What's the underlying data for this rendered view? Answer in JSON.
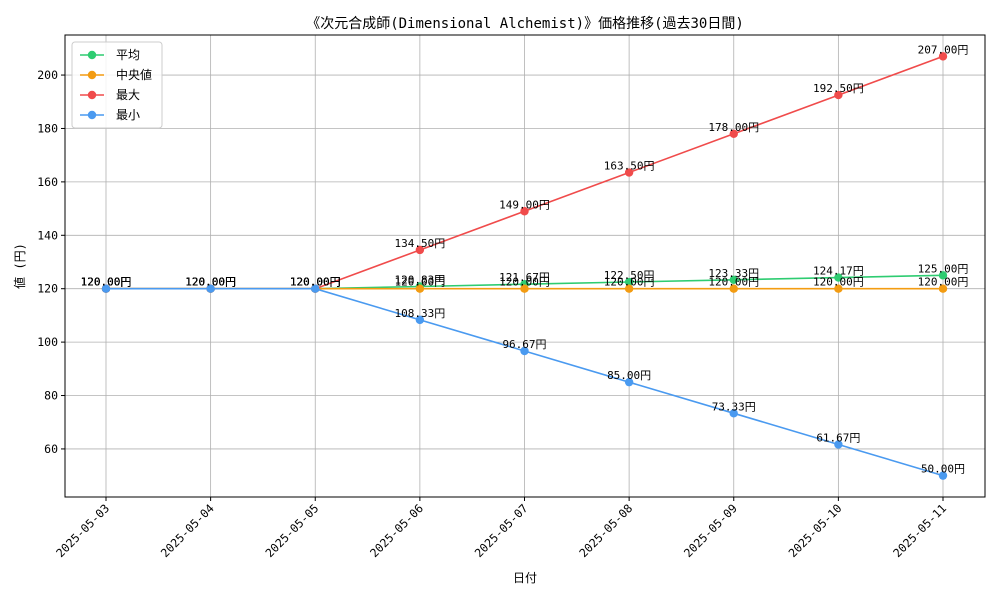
{
  "chart_data": {
    "type": "line",
    "title": "《次元合成師(Dimensional Alchemist)》価格推移(過去30日間)",
    "xlabel": "日付",
    "ylabel": "値 (円)",
    "categories": [
      "2025-05-03",
      "2025-05-04",
      "2025-05-05",
      "2025-05-06",
      "2025-05-07",
      "2025-05-08",
      "2025-05-09",
      "2025-05-10",
      "2025-05-11"
    ],
    "ylim": [
      42,
      215
    ],
    "yticks": [
      60,
      80,
      100,
      120,
      140,
      160,
      180,
      200
    ],
    "grid": true,
    "legend_position": "top-left",
    "label_suffix": "円",
    "series": [
      {
        "name": "平均",
        "color": "#2ecc71",
        "values": [
          120.0,
          120.0,
          120.0,
          120.83,
          121.67,
          122.5,
          123.33,
          124.17,
          125.0
        ]
      },
      {
        "name": "中央値",
        "color": "#f39c12",
        "values": [
          120.0,
          120.0,
          120.0,
          120.0,
          120.0,
          120.0,
          120.0,
          120.0,
          120.0
        ]
      },
      {
        "name": "最大",
        "color": "#f04b4b",
        "values": [
          120.0,
          120.0,
          120.0,
          134.5,
          149.0,
          163.5,
          178.0,
          192.5,
          207.0
        ]
      },
      {
        "name": "最小",
        "color": "#4a9af0",
        "values": [
          120.0,
          120.0,
          120.0,
          108.33,
          96.67,
          85.0,
          73.33,
          61.67,
          50.0
        ]
      }
    ]
  }
}
